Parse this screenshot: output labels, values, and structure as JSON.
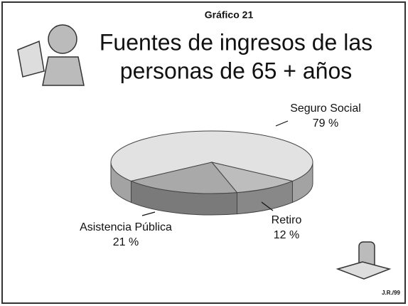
{
  "chart_data": {
    "type": "pie",
    "chart_label": "Gráfico 21",
    "title": [
      "Fuentes de ingresos de las",
      "personas de 65 + años"
    ],
    "categories": [
      "Seguro Social",
      "Retiro",
      "Asistencia Pública"
    ],
    "values": [
      79,
      12,
      21
    ],
    "value_labels": [
      "79 %",
      "12 %",
      "21 %"
    ],
    "colors": [
      "#e2e2e2",
      "#bdbdbd",
      "#a9a9a9"
    ],
    "signature": "J.R./99"
  }
}
